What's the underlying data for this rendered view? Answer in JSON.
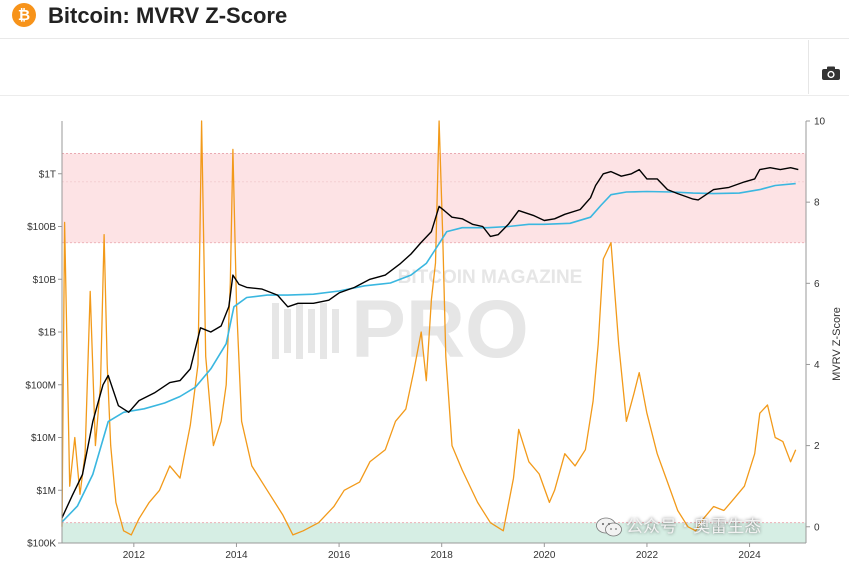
{
  "header": {
    "title": "Bitcoin: MVRV Z-Score",
    "icon": "bitcoin-icon",
    "icon_glyph": "₿"
  },
  "toolbar": {
    "camera_icon": "camera-icon"
  },
  "watermark": {
    "text": "公众号 · 奥雷生态",
    "icon": "wechat-icon"
  },
  "chart_data": {
    "type": "line",
    "title": "",
    "left_axis": {
      "scale": "log",
      "ticks": [
        "$1T",
        "$100B",
        "$10B",
        "$1B",
        "$100M",
        "$10M",
        "$1M",
        "$100K"
      ],
      "tick_values": [
        1000000000000.0,
        100000000000.0,
        10000000000.0,
        1000000000.0,
        100000000.0,
        10000000.0,
        1000000.0,
        100000.0
      ],
      "ylim": [
        100000,
        10000000000000
      ]
    },
    "right_axis": {
      "label": "MVRV Z-Score",
      "ticks": [
        "10",
        "8",
        "6",
        "4",
        "2",
        "0"
      ],
      "tick_values": [
        10,
        8,
        6,
        4,
        2,
        0
      ],
      "ylim": [
        -0.4,
        10
      ]
    },
    "x_axis": {
      "ticks": [
        "2012",
        "2014",
        "2016",
        "2018",
        "2020",
        "2022",
        "2024"
      ],
      "xlim": [
        2010.6,
        2025.1
      ]
    },
    "bands": [
      {
        "name": "red-zone",
        "zscore_range": [
          7,
          9.2
        ],
        "color": "#fde3e5"
      },
      {
        "name": "green-zone",
        "zscore_range": [
          -0.4,
          0.1
        ],
        "color": "#d6eee4"
      }
    ],
    "colors": {
      "market_cap": "#000000",
      "realized_cap": "#3ab7e0",
      "zscore": "#f29a1a"
    },
    "series": [
      {
        "key": "market_cap",
        "axis": "left",
        "x": [
          2010.6,
          2010.8,
          2011.0,
          2011.2,
          2011.4,
          2011.5,
          2011.7,
          2011.9,
          2012.1,
          2012.4,
          2012.7,
          2012.9,
          2013.1,
          2013.3,
          2013.5,
          2013.7,
          2013.85,
          2013.93,
          2014.05,
          2014.2,
          2014.5,
          2014.8,
          2015.0,
          2015.2,
          2015.5,
          2015.8,
          2016.0,
          2016.3,
          2016.6,
          2016.9,
          2017.2,
          2017.4,
          2017.6,
          2017.8,
          2017.95,
          2018.05,
          2018.2,
          2018.4,
          2018.6,
          2018.8,
          2018.95,
          2019.1,
          2019.3,
          2019.5,
          2019.8,
          2020.0,
          2020.2,
          2020.4,
          2020.7,
          2020.9,
          2021.0,
          2021.15,
          2021.3,
          2021.5,
          2021.7,
          2021.85,
          2022.0,
          2022.2,
          2022.4,
          2022.6,
          2022.9,
          2023.0,
          2023.3,
          2023.6,
          2023.9,
          2024.1,
          2024.2,
          2024.4,
          2024.6,
          2024.8,
          2024.95
        ],
        "values": [
          300000,
          800000,
          2000000,
          20000000,
          100000000,
          150000000,
          40000000,
          30000000,
          50000000,
          70000000,
          110000000,
          120000000,
          200000000,
          1200000000,
          1000000000,
          1300000000,
          3000000000,
          12000000000,
          8000000000,
          7000000000,
          6500000000,
          5000000000,
          3000000000,
          3500000000,
          3500000000,
          4000000000,
          5500000000,
          7000000000,
          10000000000,
          12000000000,
          20000000000,
          30000000000,
          50000000000,
          80000000000,
          240000000000,
          200000000000,
          150000000000,
          140000000000,
          110000000000,
          100000000000,
          65000000000,
          70000000000,
          110000000000,
          200000000000,
          160000000000,
          130000000000,
          140000000000,
          170000000000,
          210000000000,
          350000000000,
          600000000000,
          1000000000000,
          1100000000000,
          900000000000,
          1000000000000,
          1200000000000,
          800000000000,
          800000000000,
          500000000000,
          420000000000,
          330000000000,
          320000000000,
          500000000000,
          550000000000,
          700000000000,
          800000000000,
          1200000000000,
          1300000000000,
          1200000000000,
          1300000000000,
          1200000000000
        ]
      },
      {
        "key": "realized_cap",
        "axis": "left",
        "x": [
          2010.6,
          2010.9,
          2011.2,
          2011.5,
          2011.8,
          2012.2,
          2012.6,
          2012.9,
          2013.2,
          2013.5,
          2013.8,
          2013.95,
          2014.2,
          2014.6,
          2015.0,
          2015.5,
          2016.0,
          2016.5,
          2017.0,
          2017.4,
          2017.7,
          2017.9,
          2018.1,
          2018.4,
          2018.9,
          2019.3,
          2019.7,
          2020.0,
          2020.5,
          2020.9,
          2021.1,
          2021.3,
          2021.6,
          2022.0,
          2022.5,
          2022.9,
          2023.3,
          2023.8,
          2024.2,
          2024.5,
          2024.9
        ],
        "values": [
          250000,
          500000,
          2000000,
          20000000,
          30000000,
          35000000,
          45000000,
          60000000,
          90000000,
          200000000,
          600000000,
          3000000000,
          4500000000,
          5000000000,
          5000000000,
          5200000000,
          6000000000,
          7500000000,
          8500000000,
          12000000000,
          20000000000,
          40000000000,
          80000000000,
          95000000000,
          95000000000,
          100000000000,
          110000000000,
          110000000000,
          115000000000,
          150000000000,
          250000000000,
          400000000000,
          450000000000,
          460000000000,
          450000000000,
          430000000000,
          420000000000,
          430000000000,
          500000000000,
          600000000000,
          650000000000
        ]
      },
      {
        "key": "zscore",
        "axis": "right",
        "x": [
          2010.6,
          2010.65,
          2010.75,
          2010.85,
          2010.95,
          2011.05,
          2011.15,
          2011.25,
          2011.35,
          2011.42,
          2011.48,
          2011.55,
          2011.65,
          2011.8,
          2011.95,
          2012.1,
          2012.3,
          2012.5,
          2012.7,
          2012.9,
          2013.1,
          2013.25,
          2013.32,
          2013.4,
          2013.55,
          2013.7,
          2013.8,
          2013.88,
          2013.93,
          2014.0,
          2014.1,
          2014.3,
          2014.6,
          2014.9,
          2015.1,
          2015.3,
          2015.6,
          2015.9,
          2016.1,
          2016.4,
          2016.6,
          2016.9,
          2017.1,
          2017.3,
          2017.45,
          2017.6,
          2017.7,
          2017.8,
          2017.88,
          2017.95,
          2018.02,
          2018.08,
          2018.2,
          2018.4,
          2018.7,
          2018.95,
          2019.2,
          2019.4,
          2019.5,
          2019.7,
          2019.9,
          2020.1,
          2020.2,
          2020.4,
          2020.6,
          2020.8,
          2020.95,
          2021.05,
          2021.15,
          2021.3,
          2021.45,
          2021.6,
          2021.75,
          2021.85,
          2022.0,
          2022.2,
          2022.4,
          2022.6,
          2022.8,
          2022.95,
          2023.1,
          2023.3,
          2023.5,
          2023.7,
          2023.9,
          2024.1,
          2024.2,
          2024.35,
          2024.5,
          2024.65,
          2024.8,
          2024.9
        ],
        "values": [
          0.0,
          7.5,
          1.0,
          2.2,
          0.8,
          1.8,
          5.8,
          2.0,
          3.5,
          7.2,
          4.0,
          2.0,
          0.6,
          -0.1,
          -0.2,
          0.2,
          0.6,
          0.9,
          1.5,
          1.2,
          2.5,
          4.0,
          10.0,
          4.2,
          2.0,
          2.6,
          3.5,
          6.0,
          9.3,
          5.5,
          2.6,
          1.5,
          0.9,
          0.3,
          -0.2,
          -0.1,
          0.1,
          0.5,
          0.9,
          1.1,
          1.6,
          1.9,
          2.6,
          2.9,
          3.8,
          4.8,
          3.6,
          5.6,
          6.5,
          10.0,
          7.2,
          4.2,
          2.0,
          1.4,
          0.6,
          0.1,
          -0.1,
          1.2,
          2.4,
          1.6,
          1.3,
          0.6,
          0.9,
          1.8,
          1.5,
          1.9,
          3.1,
          4.5,
          6.6,
          7.0,
          4.5,
          2.6,
          3.3,
          3.8,
          2.8,
          1.8,
          1.1,
          0.4,
          0.0,
          -0.1,
          0.2,
          0.5,
          0.4,
          0.7,
          1.0,
          1.8,
          2.8,
          3.0,
          2.2,
          2.1,
          1.6,
          1.9
        ]
      }
    ]
  }
}
